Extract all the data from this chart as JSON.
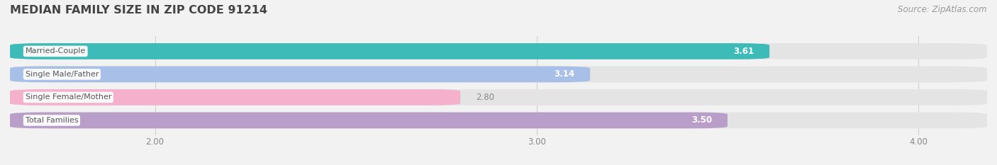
{
  "title": "MEDIAN FAMILY SIZE IN ZIP CODE 91214",
  "source": "Source: ZipAtlas.com",
  "categories": [
    "Married-Couple",
    "Single Male/Father",
    "Single Female/Mother",
    "Total Families"
  ],
  "values": [
    3.61,
    3.14,
    2.8,
    3.5
  ],
  "bar_colors": [
    "#3dbbb8",
    "#a8c0e8",
    "#f5b0cc",
    "#b89ec8"
  ],
  "bg_bar_color": "#e4e4e4",
  "xlim_left": 1.62,
  "xlim_right": 4.18,
  "data_min": 1.62,
  "data_max": 4.18,
  "xticks": [
    2.0,
    3.0,
    4.0
  ],
  "xtick_labels": [
    "2.00",
    "3.00",
    "4.00"
  ],
  "title_fontsize": 11.5,
  "source_fontsize": 8.5,
  "cat_fontsize": 8,
  "val_fontsize": 8.5,
  "tick_fontsize": 8.5,
  "bar_height": 0.7,
  "background_color": "#f2f2f2",
  "cat_label_color": "#555555",
  "val_inside_color": "#ffffff",
  "val_outside_color": "#888888",
  "grid_color": "#d0d0d0"
}
